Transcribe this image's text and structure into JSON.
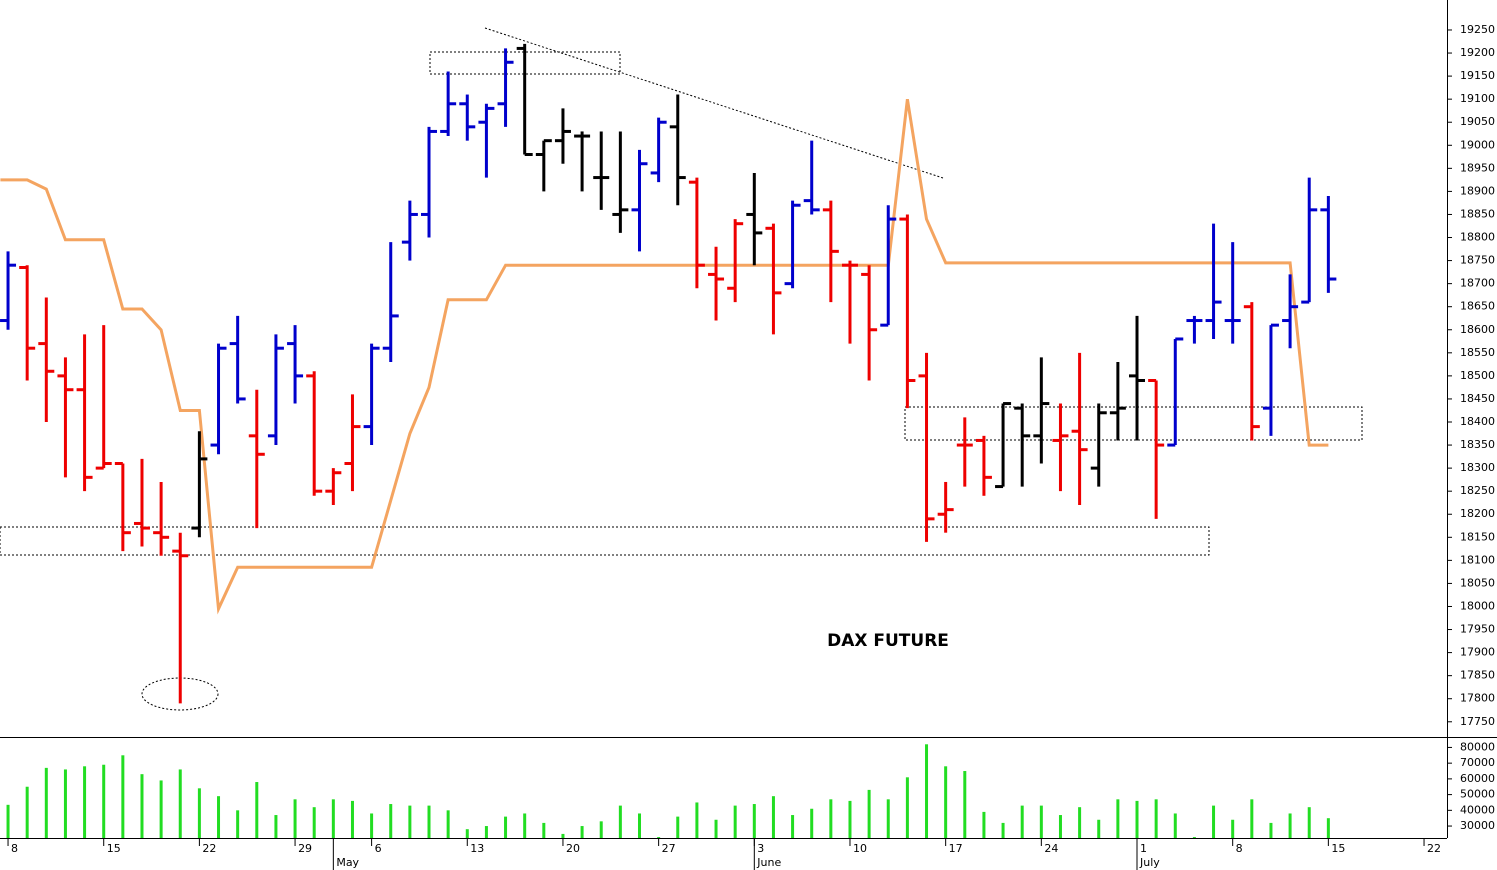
{
  "chart_data": [
    {
      "type": "ohlc",
      "title": "DAX FUTURE",
      "x": [
        0,
        1,
        2,
        3,
        4,
        5,
        6,
        7,
        8,
        9,
        10,
        11,
        12,
        13,
        14,
        15,
        16,
        17,
        18,
        19,
        20,
        21,
        22,
        23,
        24,
        25,
        26,
        27,
        28,
        29,
        30,
        31,
        32,
        33,
        34,
        35,
        36,
        37,
        38,
        39,
        40,
        41,
        42,
        43,
        44,
        45,
        46,
        47,
        48,
        49,
        50,
        51,
        52,
        53,
        54,
        55,
        56,
        57,
        58,
        59,
        60,
        61,
        62,
        63,
        64,
        65,
        66,
        67,
        68,
        69
      ],
      "open": [
        18620,
        18735,
        18570,
        18500,
        18470,
        18300,
        18310,
        18180,
        18160,
        18120,
        18170,
        18350,
        18570,
        18370,
        18370,
        18570,
        18500,
        18250,
        18310,
        18390,
        18560,
        18790,
        18850,
        19030,
        19090,
        19050,
        19090,
        19210,
        18980,
        19010,
        19020,
        18930,
        18850,
        18860,
        18940,
        19040,
        18920,
        18720,
        18690,
        18850,
        18820,
        18700,
        18880,
        18860,
        18740,
        18720,
        18610,
        18840,
        18500,
        18200,
        18350,
        18360,
        18260,
        18430,
        18370,
        18360,
        18380,
        18300,
        18420,
        18500,
        18490,
        18350,
        18620,
        18620,
        18620,
        18650,
        18430,
        18620,
        18660,
        18860
      ],
      "high": [
        18770,
        18740,
        18670,
        18540,
        18590,
        18610,
        18310,
        18320,
        18270,
        18160,
        18380,
        18570,
        18630,
        18470,
        18590,
        18610,
        18510,
        18300,
        18460,
        18570,
        18790,
        18880,
        19040,
        19160,
        19110,
        19090,
        19210,
        19220,
        19010,
        19080,
        19030,
        19030,
        19030,
        18990,
        19060,
        19110,
        18930,
        18780,
        18840,
        18940,
        18830,
        18880,
        19010,
        18880,
        18750,
        18740,
        18870,
        18850,
        18550,
        18270,
        18410,
        18370,
        18440,
        18440,
        18540,
        18440,
        18550,
        18440,
        18530,
        18630,
        18490,
        18580,
        18630,
        18830,
        18790,
        18660,
        18610,
        18720,
        18930,
        18890
      ],
      "low": [
        18600,
        18490,
        18400,
        18280,
        18250,
        18300,
        18120,
        18130,
        18110,
        17790,
        18150,
        18330,
        18440,
        18170,
        18350,
        18440,
        18240,
        18220,
        18250,
        18350,
        18530,
        18750,
        18800,
        19020,
        19010,
        18930,
        19040,
        18980,
        18900,
        18960,
        18900,
        18860,
        18810,
        18770,
        18920,
        18870,
        18690,
        18620,
        18660,
        18740,
        18590,
        18690,
        18850,
        18660,
        18570,
        18490,
        18610,
        18430,
        18140,
        18160,
        18260,
        18240,
        18260,
        18260,
        18310,
        18250,
        18220,
        18260,
        18360,
        18360,
        18190,
        18350,
        18570,
        18580,
        18570,
        18360,
        18370,
        18560,
        18660,
        18680
      ],
      "close": [
        18740,
        18560,
        18510,
        18470,
        18280,
        18310,
        18160,
        18170,
        18150,
        18110,
        18320,
        18560,
        18450,
        18330,
        18560,
        18500,
        18250,
        18290,
        18390,
        18560,
        18630,
        18850,
        19030,
        19090,
        19040,
        19080,
        19180,
        18980,
        19010,
        19030,
        19020,
        18930,
        18860,
        18960,
        19050,
        18930,
        18740,
        18710,
        18830,
        18810,
        18680,
        18870,
        18860,
        18770,
        18740,
        18600,
        18840,
        18490,
        18190,
        18210,
        18350,
        18280,
        18440,
        18370,
        18440,
        18370,
        18340,
        18420,
        18430,
        18490,
        18350,
        18580,
        18620,
        18660,
        18620,
        18390,
        18610,
        18650,
        18860,
        18710
      ],
      "colors": [
        "#0000cc",
        "#ee0000",
        "#ee0000",
        "#ee0000",
        "#ee0000",
        "#ee0000",
        "#ee0000",
        "#ee0000",
        "#ee0000",
        "#ee0000",
        "#000000",
        "#0000cc",
        "#0000cc",
        "#ee0000",
        "#0000cc",
        "#0000cc",
        "#ee0000",
        "#ee0000",
        "#ee0000",
        "#0000cc",
        "#0000cc",
        "#0000cc",
        "#0000cc",
        "#0000cc",
        "#0000cc",
        "#0000cc",
        "#0000cc",
        "#000000",
        "#000000",
        "#000000",
        "#000000",
        "#000000",
        "#000000",
        "#0000cc",
        "#0000cc",
        "#000000",
        "#ee0000",
        "#ee0000",
        "#ee0000",
        "#000000",
        "#ee0000",
        "#0000cc",
        "#0000cc",
        "#ee0000",
        "#ee0000",
        "#ee0000",
        "#0000cc",
        "#ee0000",
        "#ee0000",
        "#ee0000",
        "#ee0000",
        "#ee0000",
        "#000000",
        "#000000",
        "#000000",
        "#ee0000",
        "#ee0000",
        "#000000",
        "#000000",
        "#000000",
        "#ee0000",
        "#0000cc",
        "#0000cc",
        "#0000cc",
        "#0000cc",
        "#ee0000",
        "#0000cc",
        "#0000cc",
        "#0000cc",
        "#0000cc"
      ],
      "line": {
        "color": "#f4a460",
        "x": [
          -0.4,
          1,
          2,
          3,
          5,
          6,
          7,
          8,
          9,
          10,
          11,
          12,
          19,
          21,
          22,
          23,
          25,
          26,
          46,
          47,
          48,
          49,
          67,
          68,
          69
        ],
        "values": [
          18925,
          18925,
          18905,
          18795,
          18795,
          18645,
          18645,
          18600,
          18425,
          18425,
          17995,
          18085,
          18085,
          18375,
          18475,
          18665,
          18665,
          18740,
          18740,
          19100,
          18840,
          18745,
          18745,
          18350,
          18350
        ]
      },
      "xlim": [
        -0.42,
        75.2
      ],
      "ylim": [
        17717,
        19315
      ],
      "yticks": [
        17750,
        17800,
        17850,
        17900,
        17950,
        18000,
        18050,
        18100,
        18150,
        18200,
        18250,
        18300,
        18350,
        18400,
        18450,
        18500,
        18550,
        18600,
        18650,
        18700,
        18750,
        18800,
        18850,
        18900,
        18950,
        19000,
        19050,
        19100,
        19150,
        19200,
        19250
      ]
    },
    {
      "type": "bar",
      "x": [
        0,
        1,
        2,
        3,
        4,
        5,
        6,
        7,
        8,
        9,
        10,
        11,
        12,
        13,
        14,
        15,
        16,
        17,
        18,
        19,
        20,
        21,
        22,
        23,
        24,
        25,
        26,
        27,
        28,
        29,
        30,
        31,
        32,
        33,
        34,
        35,
        36,
        37,
        38,
        39,
        40,
        41,
        42,
        43,
        44,
        45,
        46,
        47,
        48,
        49,
        50,
        51,
        52,
        53,
        54,
        55,
        56,
        57,
        58,
        59,
        60,
        61,
        62,
        63,
        64,
        65,
        66,
        67,
        68,
        69
      ],
      "values": [
        43500,
        55000,
        67000,
        66000,
        68000,
        69000,
        75000,
        63000,
        59000,
        66000,
        54000,
        49000,
        40000,
        58000,
        37000,
        47000,
        42000,
        47000,
        46000,
        38000,
        44000,
        43000,
        43000,
        40000,
        28000,
        30000,
        36000,
        38000,
        32000,
        25000,
        30000,
        33000,
        43000,
        38000,
        23000,
        36000,
        45000,
        34000,
        43000,
        44000,
        49000,
        37000,
        41000,
        47000,
        46000,
        53000,
        47000,
        61000,
        82000,
        68000,
        65000,
        39000,
        32000,
        43000,
        43000,
        37000,
        42000,
        34000,
        47000,
        46000,
        47000,
        38000,
        23000,
        43000,
        34000,
        47000,
        32000,
        38000,
        42000,
        35000
      ],
      "color": "#22dd22",
      "xlim": [
        -0.42,
        75.2
      ],
      "ylim": [
        22400,
        86000
      ],
      "yticks": [
        30000,
        40000,
        50000,
        60000,
        70000,
        80000
      ],
      "xticks": [
        {
          "value": 0,
          "label": "8"
        },
        {
          "value": 5,
          "label": "15"
        },
        {
          "value": 10,
          "label": "22"
        },
        {
          "value": 15,
          "label": "29"
        },
        {
          "value": 19,
          "label": "6"
        },
        {
          "value": 24,
          "label": "13"
        },
        {
          "value": 29,
          "label": "20"
        },
        {
          "value": 34,
          "label": "27"
        },
        {
          "value": 39,
          "label": "3"
        },
        {
          "value": 44,
          "label": "10"
        },
        {
          "value": 49,
          "label": "17"
        },
        {
          "value": 54,
          "label": "24"
        },
        {
          "value": 59,
          "label": "1"
        },
        {
          "value": 64,
          "label": "8"
        },
        {
          "value": 69,
          "label": "15"
        },
        {
          "value": 74,
          "label": "22"
        }
      ],
      "month_ticks": [
        {
          "value": 17,
          "label": "May"
        },
        {
          "value": 39,
          "label": "June"
        },
        {
          "value": 59,
          "label": "July"
        }
      ]
    }
  ]
}
